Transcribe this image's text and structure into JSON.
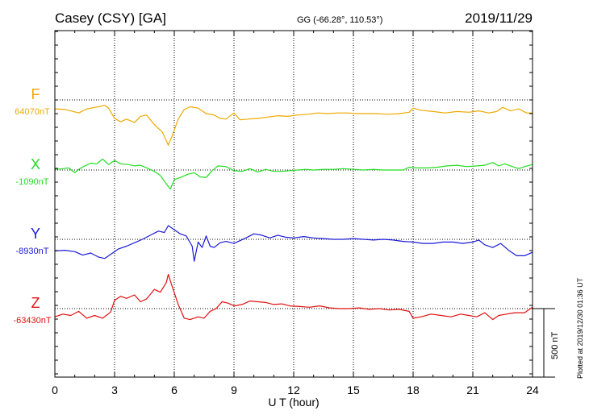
{
  "header": {
    "station": "Casey (CSY)  [GA]",
    "coords": "GG (-66.28°, 110.53°)",
    "date": "2019/11/29"
  },
  "footnote": "Plotted at 2019/12/30 01:36 UT",
  "chart_data": {
    "type": "line",
    "xlabel": "U T (hour)",
    "xlim": [
      0,
      24
    ],
    "xticks": [
      0,
      3,
      6,
      9,
      12,
      15,
      18,
      21,
      24
    ],
    "scale_label": "500 nT",
    "scale_nT": 500,
    "grid": true,
    "series": [
      {
        "name": "F",
        "baseline_label": "64070nT",
        "color": "#f0a800",
        "points": [
          [
            0,
            64005
          ],
          [
            0.5,
            64000
          ],
          [
            0.8,
            63990
          ],
          [
            1.2,
            63975
          ],
          [
            1.6,
            64005
          ],
          [
            2.0,
            64015
          ],
          [
            2.5,
            64030
          ],
          [
            2.7,
            64010
          ],
          [
            3.0,
            63935
          ],
          [
            3.3,
            63910
          ],
          [
            3.6,
            63930
          ],
          [
            4.0,
            63905
          ],
          [
            4.3,
            63950
          ],
          [
            4.6,
            63960
          ],
          [
            5.0,
            63890
          ],
          [
            5.4,
            63835
          ],
          [
            5.7,
            63740
          ],
          [
            5.9,
            63810
          ],
          [
            6.2,
            63930
          ],
          [
            6.5,
            64000
          ],
          [
            6.8,
            64020
          ],
          [
            7.2,
            64010
          ],
          [
            7.6,
            63970
          ],
          [
            8.0,
            63960
          ],
          [
            8.3,
            63935
          ],
          [
            8.6,
            63930
          ],
          [
            9.0,
            63975
          ],
          [
            9.3,
            63925
          ],
          [
            9.7,
            63930
          ],
          [
            10.2,
            63935
          ],
          [
            10.7,
            63945
          ],
          [
            11.2,
            63955
          ],
          [
            11.7,
            63950
          ],
          [
            12.2,
            63960
          ],
          [
            12.7,
            63965
          ],
          [
            13.2,
            63975
          ],
          [
            13.7,
            63970
          ],
          [
            14.2,
            63975
          ],
          [
            14.7,
            63975
          ],
          [
            15.2,
            63970
          ],
          [
            15.7,
            63970
          ],
          [
            16.2,
            63970
          ],
          [
            16.7,
            63965
          ],
          [
            17.3,
            63970
          ],
          [
            17.8,
            63980
          ],
          [
            18.0,
            64010
          ],
          [
            18.4,
            63995
          ],
          [
            19.0,
            63985
          ],
          [
            19.6,
            63975
          ],
          [
            20.2,
            63985
          ],
          [
            20.8,
            63980
          ],
          [
            21.3,
            63990
          ],
          [
            21.8,
            63975
          ],
          [
            22.2,
            63985
          ],
          [
            22.5,
            64015
          ],
          [
            22.9,
            63990
          ],
          [
            23.3,
            64005
          ],
          [
            23.7,
            63975
          ],
          [
            24.0,
            63975
          ]
        ]
      },
      {
        "name": "X",
        "baseline_label": "-1090nT",
        "color": "#22dd22",
        "points": [
          [
            0,
            -1085
          ],
          [
            0.4,
            -1080
          ],
          [
            0.7,
            -1075
          ],
          [
            1.0,
            -1110
          ],
          [
            1.2,
            -1085
          ],
          [
            1.5,
            -1060
          ],
          [
            1.8,
            -1040
          ],
          [
            2.1,
            -1045
          ],
          [
            2.4,
            -1010
          ],
          [
            2.7,
            -1050
          ],
          [
            3.0,
            -1020
          ],
          [
            3.3,
            -1045
          ],
          [
            3.7,
            -1050
          ],
          [
            4.0,
            -1060
          ],
          [
            4.3,
            -1055
          ],
          [
            4.7,
            -1080
          ],
          [
            5.0,
            -1100
          ],
          [
            5.3,
            -1130
          ],
          [
            5.6,
            -1190
          ],
          [
            5.8,
            -1230
          ],
          [
            6.0,
            -1160
          ],
          [
            6.3,
            -1145
          ],
          [
            6.7,
            -1120
          ],
          [
            7.0,
            -1110
          ],
          [
            7.3,
            -1140
          ],
          [
            7.6,
            -1145
          ],
          [
            7.9,
            -1095
          ],
          [
            8.2,
            -1060
          ],
          [
            8.6,
            -1065
          ],
          [
            9.0,
            -1095
          ],
          [
            9.4,
            -1100
          ],
          [
            9.8,
            -1080
          ],
          [
            10.2,
            -1105
          ],
          [
            10.6,
            -1085
          ],
          [
            11.0,
            -1100
          ],
          [
            11.4,
            -1100
          ],
          [
            11.8,
            -1095
          ],
          [
            12.2,
            -1090
          ],
          [
            12.6,
            -1085
          ],
          [
            13.0,
            -1090
          ],
          [
            13.5,
            -1085
          ],
          [
            14.0,
            -1085
          ],
          [
            14.5,
            -1080
          ],
          [
            15.0,
            -1085
          ],
          [
            15.5,
            -1090
          ],
          [
            16.0,
            -1085
          ],
          [
            16.5,
            -1090
          ],
          [
            17.0,
            -1090
          ],
          [
            17.5,
            -1090
          ],
          [
            17.8,
            -1070
          ],
          [
            18.2,
            -1075
          ],
          [
            18.7,
            -1075
          ],
          [
            19.2,
            -1070
          ],
          [
            19.7,
            -1060
          ],
          [
            20.2,
            -1055
          ],
          [
            20.7,
            -1065
          ],
          [
            21.2,
            -1060
          ],
          [
            21.6,
            -1055
          ],
          [
            22.0,
            -1035
          ],
          [
            22.3,
            -1060
          ],
          [
            22.6,
            -1045
          ],
          [
            23.0,
            -1065
          ],
          [
            23.3,
            -1080
          ],
          [
            23.6,
            -1065
          ],
          [
            24.0,
            -1050
          ]
        ]
      },
      {
        "name": "Y",
        "baseline_label": "-8930nT",
        "color": "#1a1ad8",
        "points": [
          [
            0,
            -9015
          ],
          [
            0.5,
            -9010
          ],
          [
            1.0,
            -9020
          ],
          [
            1.4,
            -9045
          ],
          [
            1.8,
            -9030
          ],
          [
            2.2,
            -9060
          ],
          [
            2.5,
            -9070
          ],
          [
            2.8,
            -9040
          ],
          [
            3.2,
            -9000
          ],
          [
            3.6,
            -8980
          ],
          [
            4.0,
            -8955
          ],
          [
            4.4,
            -8930
          ],
          [
            4.8,
            -8900
          ],
          [
            5.2,
            -8870
          ],
          [
            5.5,
            -8880
          ],
          [
            5.7,
            -8830
          ],
          [
            6.0,
            -8860
          ],
          [
            6.3,
            -8890
          ],
          [
            6.6,
            -8905
          ],
          [
            6.9,
            -8980
          ],
          [
            7.0,
            -9090
          ],
          [
            7.2,
            -8950
          ],
          [
            7.4,
            -8990
          ],
          [
            7.6,
            -8905
          ],
          [
            7.8,
            -8980
          ],
          [
            8.0,
            -8990
          ],
          [
            8.3,
            -8955
          ],
          [
            8.6,
            -8945
          ],
          [
            9.0,
            -8960
          ],
          [
            9.3,
            -8940
          ],
          [
            9.6,
            -8920
          ],
          [
            10.0,
            -8890
          ],
          [
            10.4,
            -8900
          ],
          [
            10.8,
            -8920
          ],
          [
            11.2,
            -8900
          ],
          [
            11.6,
            -8915
          ],
          [
            12.0,
            -8920
          ],
          [
            12.5,
            -8910
          ],
          [
            13.0,
            -8920
          ],
          [
            13.5,
            -8925
          ],
          [
            14.0,
            -8930
          ],
          [
            14.5,
            -8930
          ],
          [
            15.0,
            -8925
          ],
          [
            15.5,
            -8930
          ],
          [
            16.0,
            -8935
          ],
          [
            16.5,
            -8930
          ],
          [
            17.0,
            -8935
          ],
          [
            17.5,
            -8945
          ],
          [
            18.0,
            -8950
          ],
          [
            18.5,
            -8960
          ],
          [
            19.0,
            -8960
          ],
          [
            19.5,
            -8950
          ],
          [
            20.0,
            -8950
          ],
          [
            20.5,
            -8960
          ],
          [
            21.0,
            -8950
          ],
          [
            21.3,
            -8935
          ],
          [
            21.6,
            -8970
          ],
          [
            22.0,
            -8990
          ],
          [
            22.4,
            -8960
          ],
          [
            22.8,
            -9010
          ],
          [
            23.2,
            -9050
          ],
          [
            23.6,
            -9050
          ],
          [
            24.0,
            -9025
          ]
        ]
      },
      {
        "name": "Z",
        "baseline_label": "-63430nT",
        "color": "#e01010",
        "points": [
          [
            0,
            -63490
          ],
          [
            0.4,
            -63470
          ],
          [
            0.8,
            -63480
          ],
          [
            1.2,
            -63450
          ],
          [
            1.6,
            -63500
          ],
          [
            2.0,
            -63480
          ],
          [
            2.4,
            -63500
          ],
          [
            2.8,
            -63455
          ],
          [
            3.0,
            -63370
          ],
          [
            3.3,
            -63340
          ],
          [
            3.6,
            -63355
          ],
          [
            4.0,
            -63330
          ],
          [
            4.3,
            -63380
          ],
          [
            4.6,
            -63360
          ],
          [
            5.0,
            -63290
          ],
          [
            5.3,
            -63310
          ],
          [
            5.6,
            -63240
          ],
          [
            5.7,
            -63180
          ],
          [
            5.9,
            -63270
          ],
          [
            6.2,
            -63400
          ],
          [
            6.5,
            -63500
          ],
          [
            6.8,
            -63510
          ],
          [
            7.2,
            -63490
          ],
          [
            7.5,
            -63500
          ],
          [
            7.8,
            -63450
          ],
          [
            8.1,
            -63430
          ],
          [
            8.4,
            -63380
          ],
          [
            8.7,
            -63390
          ],
          [
            9.0,
            -63410
          ],
          [
            9.4,
            -63400
          ],
          [
            9.8,
            -63375
          ],
          [
            10.2,
            -63380
          ],
          [
            10.6,
            -63385
          ],
          [
            11.0,
            -63400
          ],
          [
            11.4,
            -63395
          ],
          [
            11.8,
            -63410
          ],
          [
            12.3,
            -63415
          ],
          [
            12.8,
            -63420
          ],
          [
            13.3,
            -63410
          ],
          [
            13.8,
            -63425
          ],
          [
            14.3,
            -63430
          ],
          [
            14.8,
            -63430
          ],
          [
            15.3,
            -63425
          ],
          [
            15.8,
            -63435
          ],
          [
            16.3,
            -63430
          ],
          [
            16.8,
            -63440
          ],
          [
            17.3,
            -63435
          ],
          [
            17.8,
            -63450
          ],
          [
            18.0,
            -63500
          ],
          [
            18.4,
            -63490
          ],
          [
            18.9,
            -63470
          ],
          [
            19.4,
            -63480
          ],
          [
            19.9,
            -63490
          ],
          [
            20.4,
            -63470
          ],
          [
            20.8,
            -63480
          ],
          [
            21.2,
            -63490
          ],
          [
            21.6,
            -63460
          ],
          [
            22.0,
            -63510
          ],
          [
            22.3,
            -63480
          ],
          [
            22.7,
            -63470
          ],
          [
            23.1,
            -63460
          ],
          [
            23.6,
            -63460
          ],
          [
            24.0,
            -63420
          ]
        ]
      }
    ]
  }
}
